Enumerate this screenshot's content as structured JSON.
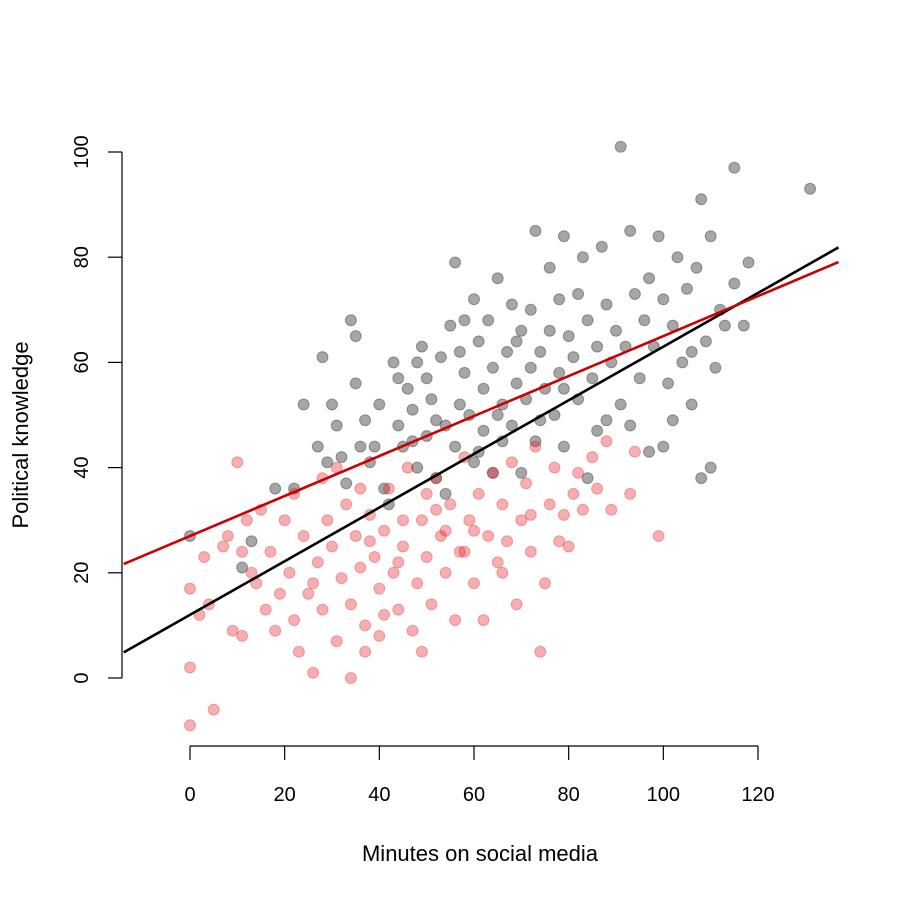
{
  "chart_data": {
    "type": "scatter",
    "title": "",
    "xlabel": "Minutes on social media",
    "ylabel": "Political knowledge",
    "xlim": [
      -14,
      137
    ],
    "ylim": [
      -12,
      105
    ],
    "x_ticks": [
      0,
      20,
      40,
      60,
      80,
      100,
      120
    ],
    "y_ticks": [
      0,
      20,
      40,
      60,
      80,
      100
    ],
    "grid": false,
    "legend": "none",
    "series": [
      {
        "color": "#000000",
        "point_alpha": 0.35,
        "points": [
          [
            0,
            27
          ],
          [
            11,
            21
          ],
          [
            13,
            26
          ],
          [
            18,
            36
          ],
          [
            22,
            36
          ],
          [
            24,
            52
          ],
          [
            27,
            44
          ],
          [
            28,
            61
          ],
          [
            29,
            41
          ],
          [
            30,
            52
          ],
          [
            31,
            48
          ],
          [
            32,
            42
          ],
          [
            33,
            37
          ],
          [
            34,
            68
          ],
          [
            35,
            56
          ],
          [
            35,
            65
          ],
          [
            36,
            44
          ],
          [
            37,
            49
          ],
          [
            38,
            41
          ],
          [
            39,
            44
          ],
          [
            40,
            52
          ],
          [
            41,
            36
          ],
          [
            42,
            33
          ],
          [
            43,
            60
          ],
          [
            44,
            48
          ],
          [
            45,
            44
          ],
          [
            46,
            55
          ],
          [
            47,
            51
          ],
          [
            48,
            40
          ],
          [
            49,
            63
          ],
          [
            50,
            46
          ],
          [
            50,
            57
          ],
          [
            51,
            53
          ],
          [
            52,
            38
          ],
          [
            53,
            61
          ],
          [
            54,
            48
          ],
          [
            54,
            35
          ],
          [
            55,
            67
          ],
          [
            56,
            79
          ],
          [
            56,
            44
          ],
          [
            57,
            52
          ],
          [
            58,
            58
          ],
          [
            59,
            50
          ],
          [
            60,
            72
          ],
          [
            60,
            41
          ],
          [
            61,
            64
          ],
          [
            62,
            47
          ],
          [
            62,
            55
          ],
          [
            63,
            68
          ],
          [
            64,
            39
          ],
          [
            64,
            59
          ],
          [
            65,
            76
          ],
          [
            66,
            52
          ],
          [
            66,
            45
          ],
          [
            67,
            62
          ],
          [
            68,
            71
          ],
          [
            68,
            48
          ],
          [
            69,
            56
          ],
          [
            70,
            66
          ],
          [
            70,
            39
          ],
          [
            71,
            53
          ],
          [
            72,
            70
          ],
          [
            72,
            59
          ],
          [
            73,
            85
          ],
          [
            73,
            45
          ],
          [
            74,
            62
          ],
          [
            75,
            55
          ],
          [
            76,
            78
          ],
          [
            76,
            66
          ],
          [
            77,
            50
          ],
          [
            78,
            72
          ],
          [
            78,
            58
          ],
          [
            79,
            84
          ],
          [
            79,
            44
          ],
          [
            80,
            65
          ],
          [
            81,
            61
          ],
          [
            82,
            73
          ],
          [
            82,
            53
          ],
          [
            83,
            80
          ],
          [
            84,
            68
          ],
          [
            85,
            57
          ],
          [
            86,
            63
          ],
          [
            86,
            47
          ],
          [
            87,
            82
          ],
          [
            88,
            71
          ],
          [
            89,
            60
          ],
          [
            90,
            66
          ],
          [
            91,
            101
          ],
          [
            91,
            52
          ],
          [
            92,
            63
          ],
          [
            93,
            85
          ],
          [
            94,
            73
          ],
          [
            95,
            57
          ],
          [
            96,
            68
          ],
          [
            97,
            76
          ],
          [
            98,
            63
          ],
          [
            99,
            84
          ],
          [
            100,
            72
          ],
          [
            101,
            56
          ],
          [
            102,
            67
          ],
          [
            103,
            80
          ],
          [
            104,
            60
          ],
          [
            105,
            74
          ],
          [
            106,
            52
          ],
          [
            107,
            78
          ],
          [
            108,
            91
          ],
          [
            108,
            38
          ],
          [
            109,
            64
          ],
          [
            110,
            84
          ],
          [
            111,
            59
          ],
          [
            112,
            70
          ],
          [
            113,
            67
          ],
          [
            115,
            97
          ],
          [
            115,
            75
          ],
          [
            117,
            67
          ],
          [
            118,
            79
          ],
          [
            131,
            93
          ],
          [
            44,
            57
          ],
          [
            47,
            45
          ],
          [
            52,
            49
          ],
          [
            57,
            62
          ],
          [
            61,
            43
          ],
          [
            65,
            50
          ],
          [
            69,
            64
          ],
          [
            74,
            49
          ],
          [
            79,
            55
          ],
          [
            84,
            38
          ],
          [
            88,
            49
          ],
          [
            93,
            48
          ],
          [
            97,
            43
          ],
          [
            102,
            49
          ],
          [
            106,
            62
          ],
          [
            110,
            40
          ],
          [
            100,
            44
          ],
          [
            48,
            60
          ],
          [
            58,
            68
          ]
        ]
      },
      {
        "color": "#e41a1c",
        "point_alpha": 0.35,
        "points": [
          [
            0,
            -9
          ],
          [
            0,
            2
          ],
          [
            0,
            17
          ],
          [
            2,
            12
          ],
          [
            4,
            14
          ],
          [
            5,
            -6
          ],
          [
            8,
            27
          ],
          [
            9,
            9
          ],
          [
            10,
            41
          ],
          [
            11,
            24
          ],
          [
            11,
            8
          ],
          [
            12,
            30
          ],
          [
            14,
            18
          ],
          [
            15,
            32
          ],
          [
            16,
            13
          ],
          [
            17,
            24
          ],
          [
            18,
            9
          ],
          [
            19,
            16
          ],
          [
            20,
            30
          ],
          [
            21,
            20
          ],
          [
            22,
            11
          ],
          [
            22,
            35
          ],
          [
            23,
            5
          ],
          [
            24,
            27
          ],
          [
            25,
            16
          ],
          [
            26,
            1
          ],
          [
            27,
            22
          ],
          [
            28,
            13
          ],
          [
            28,
            38
          ],
          [
            29,
            30
          ],
          [
            30,
            25
          ],
          [
            31,
            7
          ],
          [
            32,
            19
          ],
          [
            33,
            33
          ],
          [
            34,
            0
          ],
          [
            34,
            14
          ],
          [
            35,
            27
          ],
          [
            36,
            21
          ],
          [
            37,
            10
          ],
          [
            37,
            5
          ],
          [
            38,
            31
          ],
          [
            39,
            23
          ],
          [
            40,
            17
          ],
          [
            40,
            8
          ],
          [
            41,
            28
          ],
          [
            42,
            36
          ],
          [
            43,
            20
          ],
          [
            44,
            13
          ],
          [
            45,
            25
          ],
          [
            46,
            40
          ],
          [
            47,
            9
          ],
          [
            48,
            18
          ],
          [
            49,
            5
          ],
          [
            49,
            30
          ],
          [
            50,
            23
          ],
          [
            51,
            14
          ],
          [
            52,
            38
          ],
          [
            53,
            27
          ],
          [
            54,
            20
          ],
          [
            55,
            33
          ],
          [
            56,
            11
          ],
          [
            57,
            24
          ],
          [
            58,
            42
          ],
          [
            59,
            30
          ],
          [
            60,
            18
          ],
          [
            61,
            35
          ],
          [
            62,
            11
          ],
          [
            63,
            27
          ],
          [
            64,
            39
          ],
          [
            65,
            22
          ],
          [
            66,
            33
          ],
          [
            67,
            26
          ],
          [
            68,
            41
          ],
          [
            69,
            14
          ],
          [
            70,
            30
          ],
          [
            71,
            37
          ],
          [
            72,
            24
          ],
          [
            73,
            44
          ],
          [
            74,
            5
          ],
          [
            75,
            18
          ],
          [
            76,
            33
          ],
          [
            77,
            40
          ],
          [
            78,
            26
          ],
          [
            79,
            31
          ],
          [
            80,
            25
          ],
          [
            81,
            35
          ],
          [
            83,
            32
          ],
          [
            85,
            42
          ],
          [
            86,
            36
          ],
          [
            88,
            45
          ],
          [
            89,
            32
          ],
          [
            93,
            35
          ],
          [
            94,
            43
          ],
          [
            99,
            27
          ],
          [
            3,
            23
          ],
          [
            7,
            25
          ],
          [
            13,
            20
          ],
          [
            26,
            18
          ],
          [
            31,
            40
          ],
          [
            36,
            36
          ],
          [
            41,
            12
          ],
          [
            45,
            30
          ],
          [
            50,
            35
          ],
          [
            54,
            28
          ],
          [
            60,
            28
          ],
          [
            66,
            20
          ],
          [
            72,
            31
          ],
          [
            82,
            39
          ],
          [
            38,
            26
          ],
          [
            44,
            22
          ],
          [
            52,
            32
          ],
          [
            58,
            24
          ]
        ]
      }
    ],
    "regression_lines": [
      {
        "color": "#000000",
        "intercept": 12.0,
        "slope": 0.51
      },
      {
        "color": "#cc0000",
        "intercept": 27.0,
        "slope": 0.38
      }
    ]
  }
}
